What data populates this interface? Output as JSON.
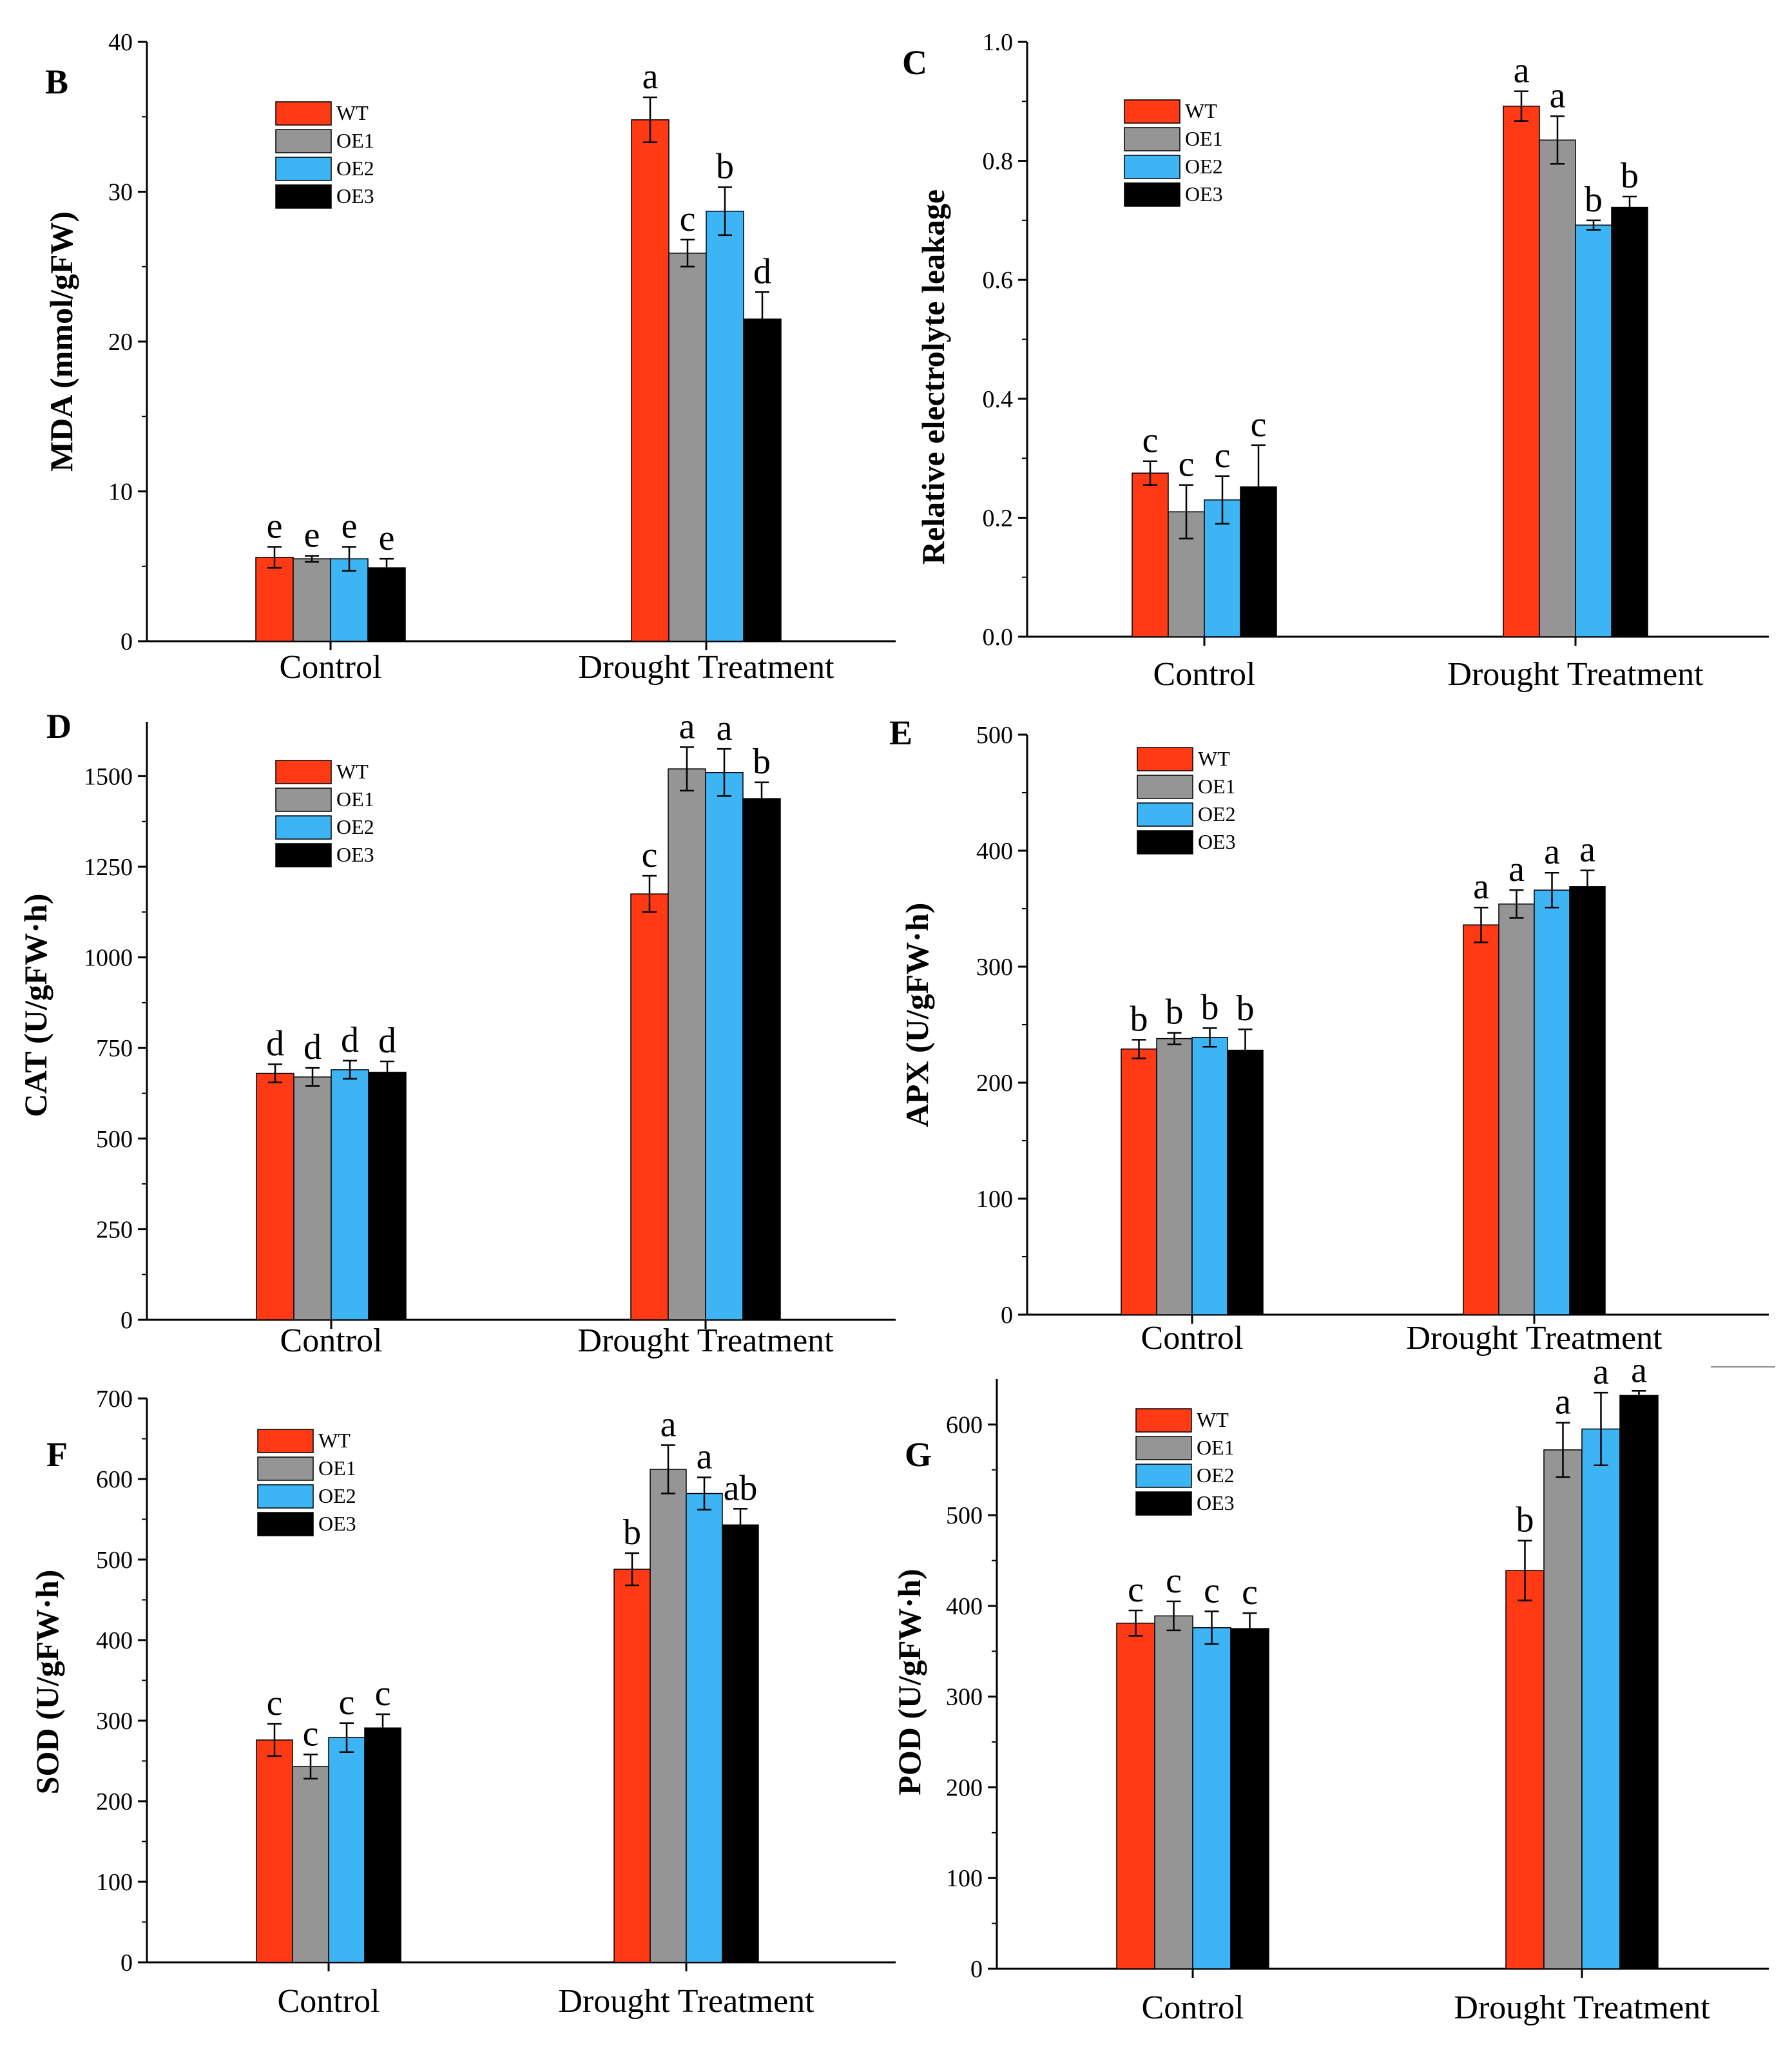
{
  "colors": {
    "WT": "#ff3a14",
    "OE1": "#959595",
    "OE2": "#3db5f5",
    "OE3": "#000000"
  },
  "chart_data": [
    {
      "type": "bar",
      "panel": "B",
      "ylabel": "MDA (mmol/gFW)",
      "categories": [
        "Control",
        "Drought Treatment"
      ],
      "ylim": [
        0,
        40
      ],
      "yticks": [
        0,
        10,
        20,
        30,
        40
      ],
      "series": [
        {
          "name": "WT",
          "values": [
            5.6,
            34.8
          ],
          "errors": [
            0.7,
            1.5
          ],
          "letters": [
            "e",
            "a"
          ]
        },
        {
          "name": "OE1",
          "values": [
            5.5,
            25.9
          ],
          "errors": [
            0.2,
            0.9
          ],
          "letters": [
            "e",
            "c"
          ]
        },
        {
          "name": "OE2",
          "values": [
            5.5,
            28.7
          ],
          "errors": [
            0.8,
            1.6
          ],
          "letters": [
            "e",
            "b"
          ]
        },
        {
          "name": "OE3",
          "values": [
            4.9,
            21.5
          ],
          "errors": [
            0.6,
            1.8
          ],
          "letters": [
            "e",
            "d"
          ]
        }
      ]
    },
    {
      "type": "bar",
      "panel": "C",
      "ylabel": "Relative electrolyte leakage",
      "categories": [
        "Control",
        "Drought Treatment"
      ],
      "ylim": [
        0,
        1.0
      ],
      "yticks": [
        "0.0",
        "0.2",
        "0.4",
        "0.6",
        "0.8",
        "1.0"
      ],
      "series": [
        {
          "name": "WT",
          "values": [
            0.275,
            0.892
          ],
          "errors": [
            0.02,
            0.025
          ],
          "letters": [
            "c",
            "a"
          ]
        },
        {
          "name": "OE1",
          "values": [
            0.21,
            0.835
          ],
          "errors": [
            0.045,
            0.04
          ],
          "letters": [
            "c",
            "a"
          ]
        },
        {
          "name": "OE2",
          "values": [
            0.23,
            0.692
          ],
          "errors": [
            0.04,
            0.008
          ],
          "letters": [
            "c",
            "b"
          ]
        },
        {
          "name": "OE3",
          "values": [
            0.252,
            0.722
          ],
          "errors": [
            0.07,
            0.018
          ],
          "letters": [
            "c",
            "b"
          ]
        }
      ]
    },
    {
      "type": "bar",
      "panel": "D",
      "ylabel": "CAT (U/gFW·h)",
      "categories": [
        "Control",
        "Drought Treatment"
      ],
      "ylim": [
        0,
        1650
      ],
      "yticks": [
        0,
        250,
        500,
        750,
        1000,
        1250,
        1500
      ],
      "series": [
        {
          "name": "WT",
          "values": [
            680,
            1175
          ],
          "errors": [
            25,
            50
          ],
          "letters": [
            "d",
            "c"
          ]
        },
        {
          "name": "OE1",
          "values": [
            670,
            1520
          ],
          "errors": [
            25,
            60
          ],
          "letters": [
            "d",
            "a"
          ]
        },
        {
          "name": "OE2",
          "values": [
            690,
            1510
          ],
          "errors": [
            25,
            65
          ],
          "letters": [
            "d",
            "a"
          ]
        },
        {
          "name": "OE3",
          "values": [
            683,
            1438
          ],
          "errors": [
            30,
            45
          ],
          "letters": [
            "d",
            "b"
          ]
        }
      ]
    },
    {
      "type": "bar",
      "panel": "E",
      "ylabel": "APX (U/gFW·h)",
      "categories": [
        "Control",
        "Drought Treatment"
      ],
      "ylim": [
        0,
        500
      ],
      "yticks": [
        0,
        100,
        200,
        300,
        400,
        500
      ],
      "series": [
        {
          "name": "WT",
          "values": [
            229,
            336
          ],
          "errors": [
            8,
            15
          ],
          "letters": [
            "b",
            "a"
          ]
        },
        {
          "name": "OE1",
          "values": [
            238,
            354
          ],
          "errors": [
            5,
            12
          ],
          "letters": [
            "b",
            "a"
          ]
        },
        {
          "name": "OE2",
          "values": [
            239,
            366
          ],
          "errors": [
            8,
            15
          ],
          "letters": [
            "b",
            "a"
          ]
        },
        {
          "name": "OE3",
          "values": [
            228,
            369
          ],
          "errors": [
            18,
            14
          ],
          "letters": [
            "b",
            "a"
          ]
        }
      ]
    },
    {
      "type": "bar",
      "panel": "F",
      "ylabel": "SOD (U/gFW·h)",
      "categories": [
        "Control",
        "Drought Treatment"
      ],
      "ylim": [
        0,
        700
      ],
      "yticks": [
        0,
        100,
        200,
        300,
        400,
        500,
        600,
        700
      ],
      "series": [
        {
          "name": "WT",
          "values": [
            276,
            488
          ],
          "errors": [
            20,
            20
          ],
          "letters": [
            "c",
            "b"
          ]
        },
        {
          "name": "OE1",
          "values": [
            243,
            612
          ],
          "errors": [
            15,
            30
          ],
          "letters": [
            "c",
            "a"
          ]
        },
        {
          "name": "OE2",
          "values": [
            279,
            582
          ],
          "errors": [
            18,
            20
          ],
          "letters": [
            "c",
            "a"
          ]
        },
        {
          "name": "OE3",
          "values": [
            291,
            543
          ],
          "errors": [
            17,
            20
          ],
          "letters": [
            "c",
            "ab"
          ]
        }
      ]
    },
    {
      "type": "bar",
      "panel": "G",
      "ylabel": "POD (U/gFW·h)",
      "categories": [
        "Control",
        "Drought Treatment"
      ],
      "ylim": [
        0,
        650
      ],
      "yticks": [
        0,
        100,
        200,
        300,
        400,
        500,
        600
      ],
      "series": [
        {
          "name": "WT",
          "values": [
            381,
            439
          ],
          "errors": [
            14,
            33
          ],
          "letters": [
            "c",
            "b"
          ]
        },
        {
          "name": "OE1",
          "values": [
            389,
            572
          ],
          "errors": [
            16,
            30
          ],
          "letters": [
            "c",
            "a"
          ]
        },
        {
          "name": "OE2",
          "values": [
            376,
            595
          ],
          "errors": [
            18,
            40
          ],
          "letters": [
            "c",
            "a"
          ]
        },
        {
          "name": "OE3",
          "values": [
            375,
            632
          ],
          "errors": [
            17,
            5
          ],
          "letters": [
            "c",
            "a"
          ]
        }
      ]
    }
  ]
}
